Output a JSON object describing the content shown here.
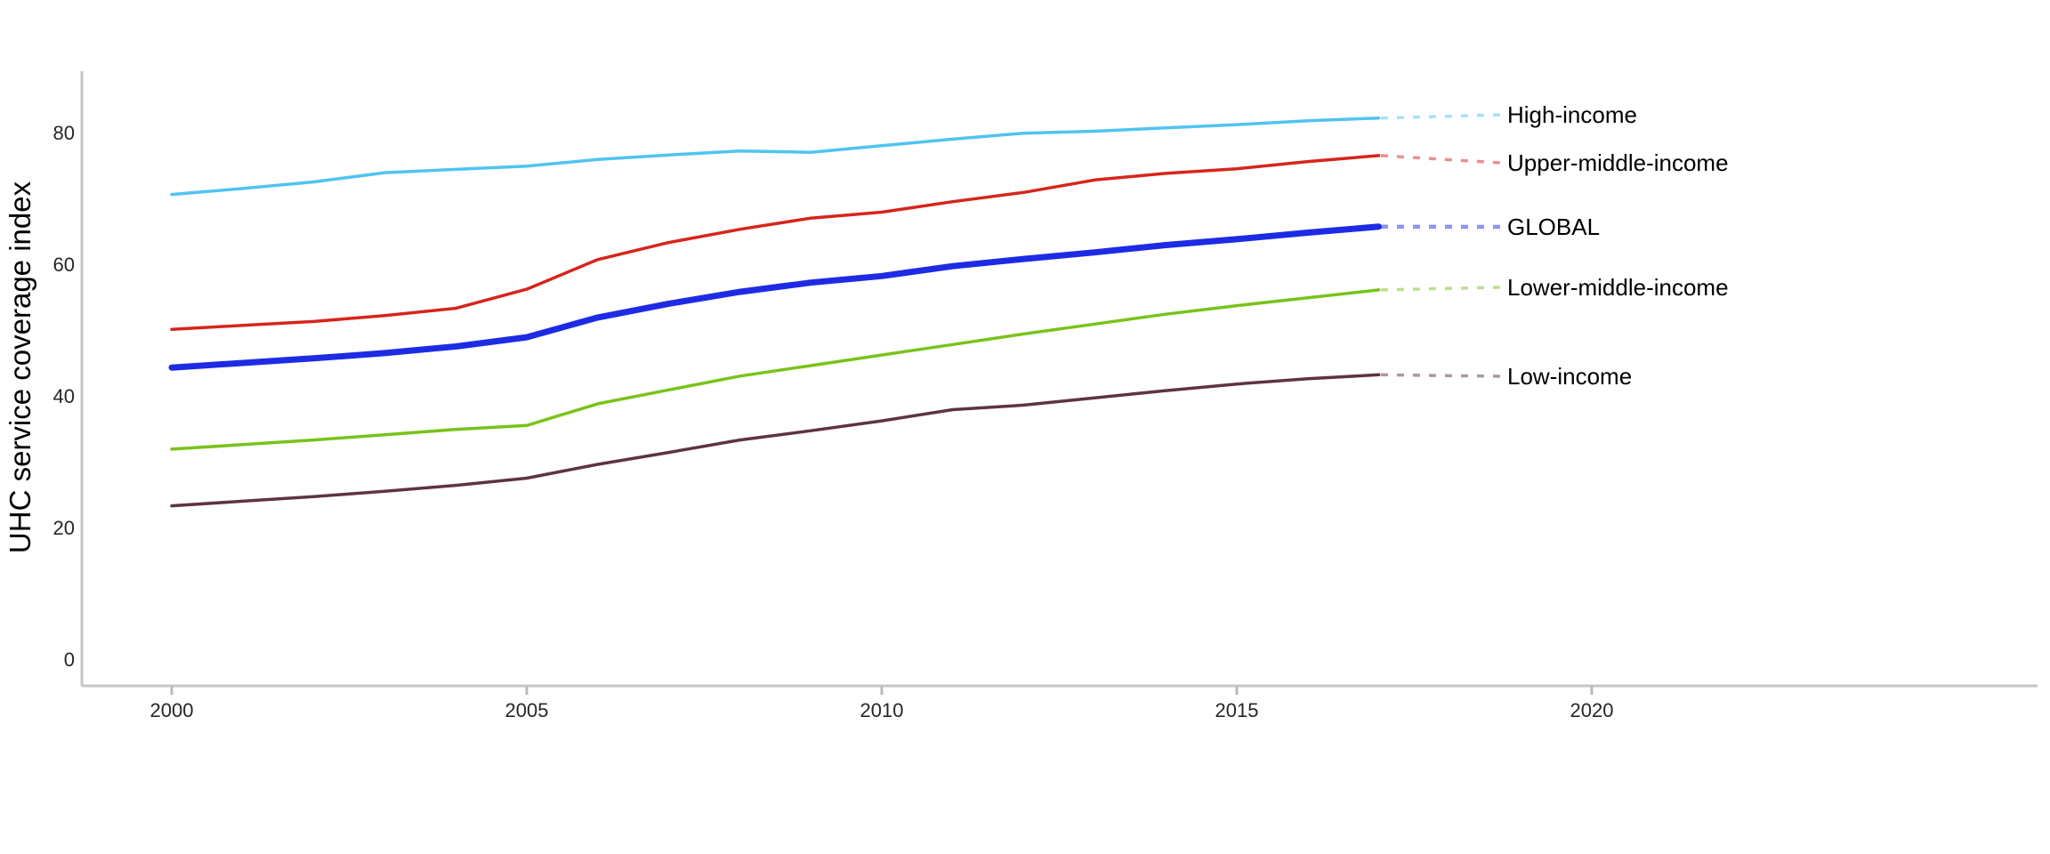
{
  "figure": {
    "background": "#ffffff",
    "axis_color": "#c6c6c6",
    "tick_color": "#b9b9b9",
    "tick_text_color": "#262626",
    "label_text_color": "#000000"
  },
  "chart_data": {
    "type": "line",
    "title": "",
    "xlabel": "",
    "ylabel": "UHC service coverage index",
    "grid": false,
    "legend_position": "direct-labels-right",
    "x_ticks": [
      2000,
      2005,
      2010,
      2015,
      2020
    ],
    "y_ticks": [
      0,
      20,
      40,
      60,
      80
    ],
    "xlim": [
      1998.7,
      2026.3
    ],
    "ylim": [
      0,
      87
    ],
    "x": [
      2000,
      2001,
      2002,
      2003,
      2004,
      2005,
      2006,
      2007,
      2008,
      2009,
      2010,
      2011,
      2012,
      2013,
      2014,
      2015,
      2016,
      2017
    ],
    "series": [
      {
        "name": "High-income",
        "color": "#4FC4F1",
        "line_width": 3.5,
        "values": [
          70.6,
          71.5,
          72.5,
          73.9,
          74.4,
          74.9,
          75.9,
          76.6,
          77.2,
          77.0,
          78.0,
          79.0,
          79.9,
          80.2,
          80.7,
          81.2,
          81.8,
          82.2
        ]
      },
      {
        "name": "Upper-middle-income",
        "color": "#D6251C",
        "line_width": 3.5,
        "values": [
          50.1,
          50.7,
          51.3,
          52.2,
          53.3,
          56.2,
          60.7,
          63.3,
          65.3,
          67.0,
          67.9,
          69.5,
          70.9,
          72.8,
          73.8,
          74.5,
          75.6,
          76.5
        ]
      },
      {
        "name": "GLOBAL",
        "color": "#1E2BE4",
        "line_width": 7,
        "values": [
          44.3,
          45.0,
          45.7,
          46.5,
          47.5,
          48.9,
          51.9,
          54.0,
          55.8,
          57.2,
          58.2,
          59.7,
          60.8,
          61.8,
          62.9,
          63.8,
          64.8,
          65.7
        ]
      },
      {
        "name": "Lower-middle-income",
        "color": "#79C31A",
        "line_width": 3.5,
        "values": [
          31.9,
          32.6,
          33.3,
          34.1,
          34.9,
          35.5,
          38.8,
          40.9,
          43.0,
          44.6,
          46.2,
          47.8,
          49.4,
          50.9,
          52.4,
          53.7,
          54.9,
          56.1
        ]
      },
      {
        "name": "Low-income",
        "color": "#5F3342",
        "line_width": 3.5,
        "values": [
          23.3,
          24.0,
          24.7,
          25.5,
          26.4,
          27.5,
          29.6,
          31.4,
          33.3,
          34.7,
          36.2,
          37.9,
          38.6,
          39.7,
          40.8,
          41.8,
          42.6,
          43.2
        ]
      }
    ]
  }
}
